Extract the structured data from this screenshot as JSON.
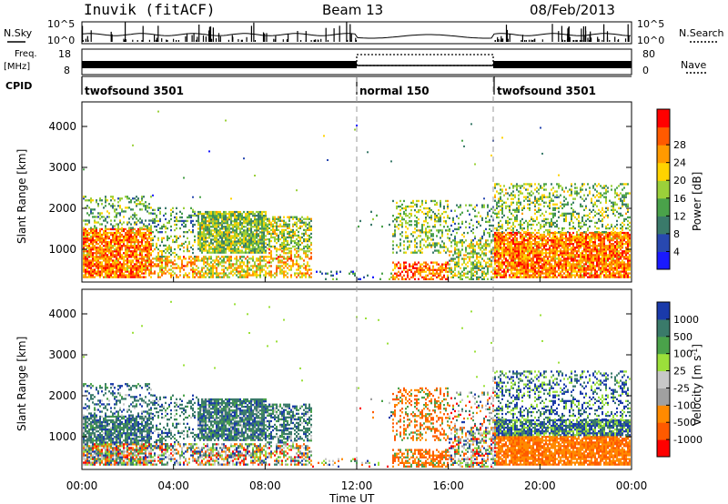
{
  "header": {
    "station": "Inuvik (fitACF)",
    "beam": "Beam 13",
    "date": "08/Feb/2013"
  },
  "left_labels": {
    "nsky": "N.Sky",
    "freq_top": "Freq.",
    "freq_unit": "[MHz]",
    "cpid": "CPID"
  },
  "right_labels": {
    "nsearch": "N.Search",
    "nave": "Nave"
  },
  "cpid_segments": [
    {
      "label": "twofsound 3501",
      "start": 0,
      "end": 12
    },
    {
      "label": "normal 150",
      "start": 12,
      "end": 18
    },
    {
      "label": "twofsound 3501",
      "start": 18,
      "end": 24
    }
  ],
  "footer": {
    "xaxis_title": "Time UT"
  },
  "colors": {
    "power": [
      "#1a1aff",
      "#2848b0",
      "#3a7a6a",
      "#4aa24a",
      "#9bd03a",
      "#ffd300",
      "#ff9a00",
      "#ff5a00",
      "#ff0000"
    ],
    "velocity": [
      "#ff0000",
      "#ff5a00",
      "#ff8a00",
      "#a0a0a0",
      "#c8c8c8",
      "#9be03a",
      "#4aa24a",
      "#3a7a6a",
      "#1a3aaa"
    ]
  },
  "chart_data": [
    {
      "type": "line",
      "name": "noise-panel",
      "ylabel_left": "N.Sky",
      "ylabel_right": "N.Search",
      "left_ticks": [
        "10^5",
        "10^0"
      ],
      "right_ticks": [
        "10^5",
        "10^0"
      ]
    },
    {
      "type": "line",
      "name": "freq-nave-panel",
      "left_ticks": [
        "18",
        "8"
      ],
      "right_ticks": [
        "80",
        "0"
      ]
    },
    {
      "type": "heatmap",
      "name": "power-panel",
      "ylabel": "Slant Range [km]",
      "ylim": [
        200,
        4600
      ],
      "yticks": [
        "1000",
        "2000",
        "3000",
        "4000"
      ],
      "xlim": [
        0,
        24
      ],
      "colorbar_label": "Power [dB]",
      "colorbar_ticks": [
        "4",
        "8",
        "12",
        "16",
        "20",
        "24",
        "28"
      ]
    },
    {
      "type": "heatmap",
      "name": "velocity-panel",
      "ylabel": "Slant Range [km]",
      "ylim": [
        200,
        4600
      ],
      "yticks": [
        "1000",
        "2000",
        "3000",
        "4000"
      ],
      "xlim": [
        0,
        24
      ],
      "xlabel": "Time UT",
      "xticks": [
        "00:00",
        "04:00",
        "08:00",
        "12:00",
        "16:00",
        "20:00",
        "00:00"
      ],
      "colorbar_label": "Velocity [m s^-1]",
      "colorbar_ticks": [
        "1000",
        "500",
        "100",
        "25",
        "-25",
        "-100",
        "-500",
        "-1000"
      ]
    }
  ]
}
